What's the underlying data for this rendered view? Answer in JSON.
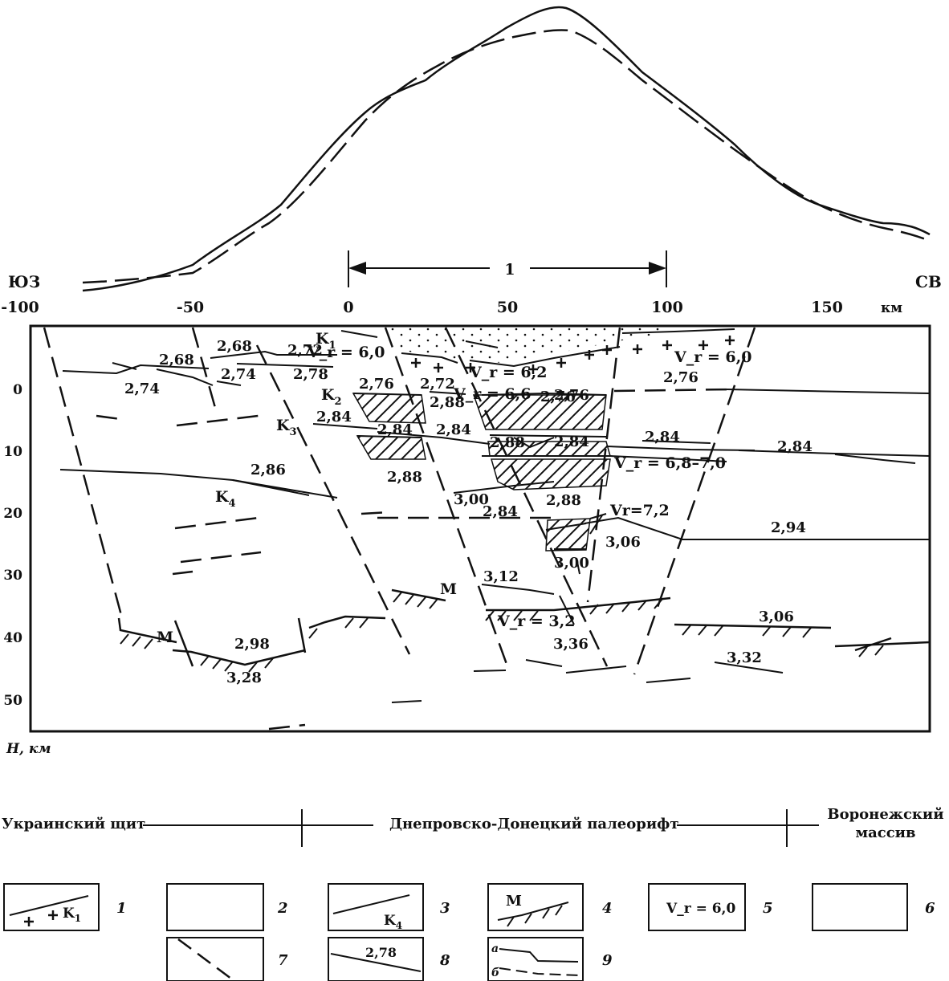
{
  "direction": {
    "left": "ЮЗ",
    "right": "СВ"
  },
  "x_axis": {
    "ticks": [
      "-100",
      "-50",
      "0",
      "50",
      "100",
      "150"
    ],
    "unit": "км"
  },
  "y_axis": {
    "ticks": [
      "0",
      "10",
      "20",
      "30",
      "40",
      "50"
    ],
    "label": "H, км"
  },
  "segment_label": "1",
  "densities": [
    "2,68",
    "2,68",
    "2,72",
    "2,74",
    "2,74",
    "2,78",
    "2,76",
    "2,72",
    "2,88",
    "2,76",
    "2,76",
    "2,76",
    "2,84",
    "2,84",
    "2,84",
    "2,88",
    "2,84",
    "2,84",
    "2,84",
    "2,86",
    "2,88",
    "3,00",
    "2,88",
    "2,84",
    "2,94",
    "3,06",
    "3,00",
    "3,12",
    "3,06",
    "2,98",
    "3,28",
    "3,36",
    "3,32"
  ],
  "velocities": [
    "V_r = 6,0",
    "V_r = 6,2",
    "V_r = 6,6",
    "V_r = 6,0",
    "V_r = 6,8–7,0",
    "Vr=7,2",
    "V_r = 3,2"
  ],
  "layers": {
    "k1": "K",
    "k1_sub": "1",
    "k2": "K",
    "k2_sub": "2",
    "k3": "K",
    "k3_sub": "3",
    "k4": "K",
    "k4_sub": "4",
    "moho_left": "М",
    "moho_mid": "М"
  },
  "regions": {
    "left": "Украинский щит",
    "middle": "Днепровско-Донецкий палеорифт",
    "right_line1": "Воронежский",
    "right_line2": "массив"
  },
  "legend": [
    {
      "num": "1",
      "text": "K",
      "sub": "1"
    },
    {
      "num": "2"
    },
    {
      "num": "3",
      "text": "K",
      "sub": "4"
    },
    {
      "num": "4",
      "text": "М"
    },
    {
      "num": "5",
      "text": "V_r = 6,0"
    },
    {
      "num": "6"
    },
    {
      "num": "7"
    },
    {
      "num": "8",
      "text": "2,78"
    },
    {
      "num": "9",
      "a": "а",
      "b": "б"
    }
  ]
}
